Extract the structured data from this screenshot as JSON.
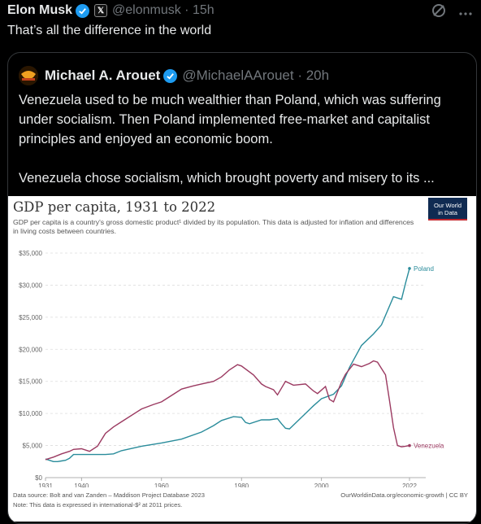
{
  "tweet": {
    "author_name": "Elon Musk",
    "handle_time": "@elonmusk · 15h",
    "text": "That’s all the difference in the world"
  },
  "quote": {
    "author_name": "Michael A. Arouet",
    "handle_time": "@MichaelAArouet · 20h",
    "paragraph1": "Venezuela used to be much wealthier than Poland, which was suffering under socialism. Then Poland implemented free-market and capitalist principles and enjoyed an economic boom.",
    "paragraph2": "Venezuela chose socialism, which brought poverty and misery to its ..."
  },
  "icons": {
    "verified": "verified-badge-icon",
    "x_logo": "x-logo-icon",
    "grok": "grok-icon",
    "more": "more-icon"
  },
  "chart_meta": {
    "title": "GDP per capita, 1931 to 2022",
    "subtitle": "GDP per capita is a country's gross domestic product¹ divided by its population. This data is adjusted for inflation and differences in living costs between countries.",
    "logo_line1": "Our World",
    "logo_line2": "in Data",
    "source": "Data source: Bolt and van Zanden – Maddison Project Database 2023",
    "note": "Note: This data is expressed in international-$² at 2011 prices.",
    "credit": "OurWorldinData.org/economic-growth | CC BY"
  },
  "chart_data": {
    "type": "line",
    "title": "GDP per capita, 1931 to 2022",
    "ylim": [
      0,
      35000
    ],
    "xlim": [
      1931,
      2022
    ],
    "y_ticks": [
      "$0",
      "$5,000",
      "$10,000",
      "$15,000",
      "$20,000",
      "$25,000",
      "$30,000",
      "$35,000"
    ],
    "y_tick_values": [
      0,
      5000,
      10000,
      15000,
      20000,
      25000,
      30000,
      35000
    ],
    "x_ticks": [
      "1931",
      "1940",
      "1960",
      "1980",
      "2000",
      "2022"
    ],
    "x_tick_values": [
      1931,
      1940,
      1960,
      1980,
      2000,
      2022
    ],
    "grid": "horizontal dashed",
    "series": [
      {
        "name": "Poland",
        "color": "#2a8c9b",
        "x": [
          1931,
          1932,
          1933,
          1934,
          1935,
          1936,
          1937,
          1938,
          1939,
          1940,
          1946,
          1948,
          1950,
          1955,
          1960,
          1965,
          1970,
          1973,
          1975,
          1978,
          1980,
          1981,
          1982,
          1985,
          1987,
          1989,
          1990,
          1991,
          1992,
          1995,
          1998,
          2000,
          2003,
          2005,
          2007,
          2010,
          2013,
          2015,
          2018,
          2020,
          2021,
          2022
        ],
        "y": [
          2900,
          2700,
          2500,
          2500,
          2600,
          2700,
          3000,
          3600,
          3600,
          3600,
          3600,
          3700,
          4200,
          4900,
          5400,
          6000,
          7100,
          8100,
          8900,
          9500,
          9400,
          8600,
          8400,
          9000,
          9000,
          9200,
          8400,
          7700,
          7600,
          9400,
          11200,
          12300,
          13000,
          14300,
          17200,
          20600,
          22400,
          23800,
          28200,
          27800,
          30300,
          32600
        ]
      },
      {
        "name": "Venezuela",
        "color": "#9b3a61",
        "x": [
          1931,
          1932,
          1933,
          1935,
          1937,
          1938,
          1940,
          1942,
          1944,
          1946,
          1948,
          1950,
          1955,
          1958,
          1960,
          1963,
          1965,
          1968,
          1970,
          1973,
          1975,
          1977,
          1979,
          1980,
          1983,
          1985,
          1986,
          1988,
          1989,
          1991,
          1993,
          1996,
          1998,
          1999,
          2001,
          2002,
          2003,
          2005,
          2006,
          2008,
          2010,
          2012,
          2013,
          2014,
          2016,
          2017,
          2018,
          2019,
          2020,
          2021,
          2022
        ],
        "y": [
          2800,
          3000,
          3200,
          3700,
          4100,
          4400,
          4500,
          4100,
          4900,
          6900,
          7900,
          8700,
          10700,
          11400,
          11800,
          13000,
          13800,
          14300,
          14600,
          15000,
          15700,
          16800,
          17600,
          17400,
          16000,
          14600,
          14200,
          13700,
          12900,
          15000,
          14400,
          14600,
          13500,
          13100,
          14200,
          12200,
          11800,
          14900,
          16100,
          17700,
          17300,
          17800,
          18200,
          18000,
          16000,
          12000,
          7800,
          5000,
          4800,
          4900,
          5000
        ]
      }
    ]
  }
}
